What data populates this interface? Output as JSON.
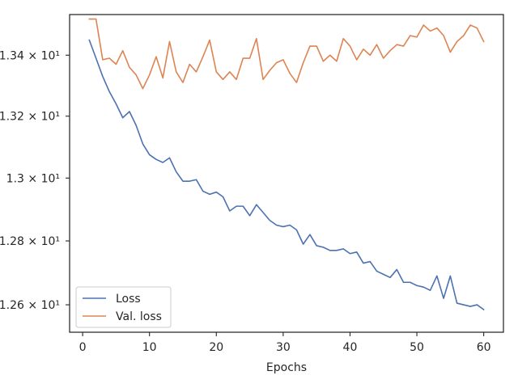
{
  "chart_data": {
    "type": "line",
    "title": "",
    "xlabel": "Epochs",
    "ylabel": "",
    "xlim": [
      -1.95,
      62.95
    ],
    "ylim": [
      12.515,
      13.535
    ],
    "yscale": "log",
    "grid": false,
    "legend_position": "lower-left",
    "x_ticks": [
      0,
      10,
      20,
      30,
      40,
      50,
      60
    ],
    "x_tick_labels": [
      "0",
      "10",
      "20",
      "30",
      "40",
      "50",
      "60"
    ],
    "y_ticks": [
      12.6,
      12.8,
      13.0,
      13.2,
      13.4
    ],
    "y_tick_labels": [
      "1.26 × 10¹",
      "1.28 × 10¹",
      "1.3 × 10¹",
      "1.32 × 10¹",
      "1.34 × 10¹"
    ],
    "x": [
      1,
      2,
      3,
      4,
      5,
      6,
      7,
      8,
      9,
      10,
      11,
      12,
      13,
      14,
      15,
      16,
      17,
      18,
      19,
      20,
      21,
      22,
      23,
      24,
      25,
      26,
      27,
      28,
      29,
      30,
      31,
      32,
      33,
      34,
      35,
      36,
      37,
      38,
      39,
      40,
      41,
      42,
      43,
      44,
      45,
      46,
      47,
      48,
      49,
      50,
      51,
      52,
      53,
      54,
      55,
      56,
      57,
      58,
      59,
      60
    ],
    "series": [
      {
        "name": "Loss",
        "color": "#4c72b0",
        "values": [
          13.45,
          13.39,
          13.33,
          13.28,
          13.24,
          13.195,
          13.215,
          13.17,
          13.11,
          13.075,
          13.06,
          13.05,
          13.065,
          13.02,
          12.99,
          12.99,
          12.995,
          12.958,
          12.948,
          12.955,
          12.94,
          12.895,
          12.91,
          12.91,
          12.88,
          12.915,
          12.89,
          12.865,
          12.85,
          12.845,
          12.85,
          12.835,
          12.79,
          12.82,
          12.785,
          12.78,
          12.77,
          12.77,
          12.775,
          12.76,
          12.765,
          12.73,
          12.735,
          12.705,
          12.695,
          12.685,
          12.71,
          12.67,
          12.67,
          12.66,
          12.655,
          12.645,
          12.69,
          12.62,
          12.69,
          12.605,
          12.6,
          12.595,
          12.6,
          12.585
        ]
      },
      {
        "name": "Val. loss",
        "color": "#dd8452",
        "values": [
          13.52,
          13.52,
          13.385,
          13.39,
          13.37,
          13.415,
          13.36,
          13.335,
          13.29,
          13.335,
          13.395,
          13.325,
          13.445,
          13.345,
          13.31,
          13.37,
          13.345,
          13.395,
          13.45,
          13.345,
          13.32,
          13.345,
          13.32,
          13.39,
          13.39,
          13.455,
          13.32,
          13.35,
          13.375,
          13.385,
          13.34,
          13.31,
          13.375,
          13.43,
          13.43,
          13.38,
          13.4,
          13.38,
          13.455,
          13.43,
          13.385,
          13.42,
          13.4,
          13.435,
          13.39,
          13.415,
          13.435,
          13.43,
          13.465,
          13.46,
          13.5,
          13.48,
          13.49,
          13.465,
          13.41,
          13.445,
          13.465,
          13.5,
          13.49,
          13.445
        ]
      }
    ]
  }
}
